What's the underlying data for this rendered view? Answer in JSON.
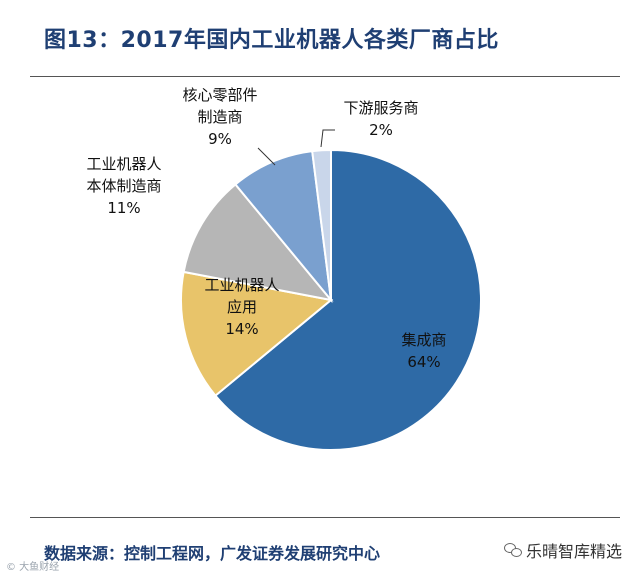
{
  "title": "图13：2017年国内工业机器人各类厂商占比",
  "source": "数据来源：控制工程网，广发证券发展研究中心",
  "watermark_left": "© 大鱼财经",
  "watermark_right": "乐晴智库精选",
  "chart_data": {
    "type": "pie",
    "slices": [
      {
        "label_lines": [
          "集成商"
        ],
        "pct_text": "64%",
        "value": 64,
        "color": "#2e6aa6"
      },
      {
        "label_lines": [
          "工业机器人",
          "应用"
        ],
        "pct_text": "14%",
        "value": 14,
        "color": "#e8c46a"
      },
      {
        "label_lines": [
          "工业机器人",
          "本体制造商"
        ],
        "pct_text": "11%",
        "value": 11,
        "color": "#b6b6b6"
      },
      {
        "label_lines": [
          "核心零部件",
          "制造商"
        ],
        "pct_text": "9%",
        "value": 9,
        "color": "#7aa0cf"
      },
      {
        "label_lines": [
          "下游服务商"
        ],
        "pct_text": "2%",
        "value": 2,
        "color": "#c9d6ea"
      }
    ]
  }
}
